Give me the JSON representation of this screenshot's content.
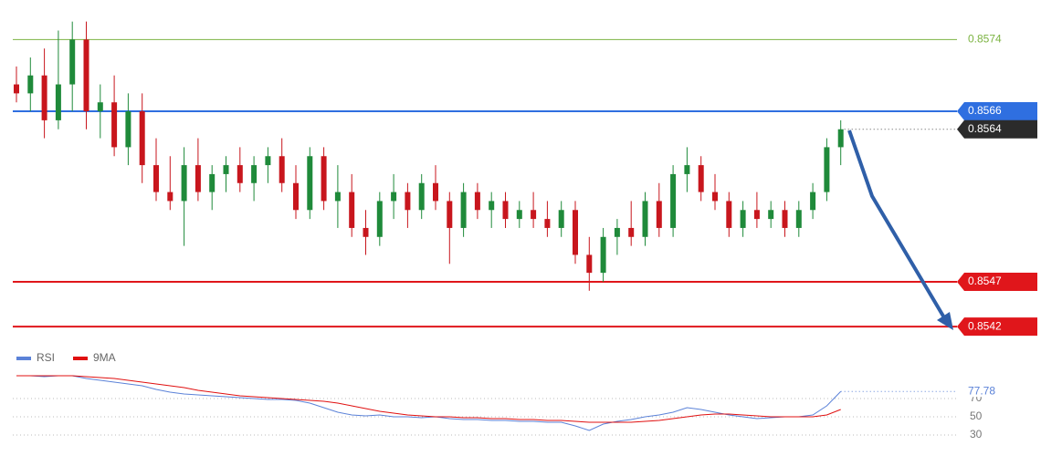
{
  "chart_data": [
    {
      "type": "candlestick",
      "open": [
        0.8569,
        0.8568,
        0.857,
        0.8565,
        0.8569,
        0.8574,
        0.8566,
        0.8567,
        0.8562,
        0.8566,
        0.856,
        0.8557,
        0.8556,
        0.856,
        0.8557,
        0.8559,
        0.856,
        0.8558,
        0.856,
        0.8561,
        0.8558,
        0.8555,
        0.8561,
        0.8556,
        0.8557,
        0.8553,
        0.8552,
        0.8556,
        0.8557,
        0.8555,
        0.8558,
        0.8556,
        0.8553,
        0.8557,
        0.8555,
        0.8556,
        0.8554,
        0.8555,
        0.8554,
        0.8553,
        0.8555,
        0.855,
        0.8548,
        0.8552,
        0.8553,
        0.8552,
        0.8556,
        0.8553,
        0.8559,
        0.856,
        0.8557,
        0.8556,
        0.8553,
        0.8555,
        0.8554,
        0.8555,
        0.8553,
        0.8555,
        0.8557,
        0.8562
      ],
      "high": [
        0.8571,
        0.8572,
        0.8573,
        0.8575,
        0.8576,
        0.8576,
        0.8569,
        0.857,
        0.8568,
        0.8568,
        0.8563,
        0.8561,
        0.8562,
        0.8563,
        0.856,
        0.8561,
        0.8562,
        0.8561,
        0.8562,
        0.8563,
        0.856,
        0.8562,
        0.8562,
        0.856,
        0.8559,
        0.8555,
        0.8557,
        0.8559,
        0.8558,
        0.8559,
        0.856,
        0.8557,
        0.8558,
        0.8558,
        0.8557,
        0.8557,
        0.8556,
        0.8557,
        0.8556,
        0.8556,
        0.8556,
        0.8552,
        0.8553,
        0.8554,
        0.8556,
        0.8557,
        0.8558,
        0.856,
        0.8562,
        0.8561,
        0.8559,
        0.8557,
        0.8556,
        0.8557,
        0.8556,
        0.8556,
        0.8556,
        0.8558,
        0.8563,
        0.8565
      ],
      "low": [
        0.8567,
        0.8566,
        0.8563,
        0.8564,
        0.8566,
        0.8564,
        0.8563,
        0.8561,
        0.856,
        0.8558,
        0.8556,
        0.8555,
        0.8551,
        0.8556,
        0.8555,
        0.8557,
        0.8557,
        0.8556,
        0.8558,
        0.8557,
        0.8554,
        0.8554,
        0.8555,
        0.8553,
        0.8552,
        0.855,
        0.8551,
        0.8554,
        0.8553,
        0.8554,
        0.8555,
        0.8549,
        0.8552,
        0.8554,
        0.8553,
        0.8553,
        0.8553,
        0.8553,
        0.8552,
        0.8552,
        0.8549,
        0.8546,
        0.8547,
        0.855,
        0.8551,
        0.8551,
        0.8552,
        0.8552,
        0.8557,
        0.8556,
        0.8555,
        0.8552,
        0.8552,
        0.8553,
        0.8553,
        0.8552,
        0.8552,
        0.8554,
        0.8556,
        0.856
      ],
      "close": [
        0.8568,
        0.857,
        0.8565,
        0.8569,
        0.8574,
        0.8566,
        0.8567,
        0.8562,
        0.8566,
        0.856,
        0.8557,
        0.8556,
        0.856,
        0.8557,
        0.8559,
        0.856,
        0.8558,
        0.856,
        0.8561,
        0.8558,
        0.8555,
        0.8561,
        0.8556,
        0.8557,
        0.8553,
        0.8552,
        0.8556,
        0.8557,
        0.8555,
        0.8558,
        0.8556,
        0.8553,
        0.8557,
        0.8555,
        0.8556,
        0.8554,
        0.8555,
        0.8554,
        0.8553,
        0.8555,
        0.855,
        0.8548,
        0.8552,
        0.8553,
        0.8552,
        0.8556,
        0.8553,
        0.8559,
        0.856,
        0.8557,
        0.8556,
        0.8553,
        0.8555,
        0.8554,
        0.8555,
        0.8553,
        0.8555,
        0.8557,
        0.8562,
        0.8564
      ],
      "up_color": "#1f8a3a",
      "down_color": "#c8161d",
      "ylim": [
        0.8541,
        0.8578
      ],
      "levels": [
        {
          "value": 0.8574,
          "color": "#7cb342",
          "boxed": false
        },
        {
          "value": 0.8566,
          "color": "#2f6fe0",
          "boxed": true
        },
        {
          "value": 0.8547,
          "color": "#e0161b",
          "boxed": true
        },
        {
          "value": 0.8542,
          "color": "#e0161b",
          "boxed": true
        }
      ],
      "last_color": "#2b2b2b"
    },
    {
      "type": "line",
      "series": [
        {
          "name": "RSI",
          "color": "#5b82d8",
          "values": [
            95,
            95,
            94,
            95,
            95,
            92,
            90,
            88,
            86,
            84,
            80,
            77,
            75,
            74,
            73,
            72,
            71,
            70,
            69,
            69,
            68,
            65,
            60,
            55,
            52,
            51,
            52,
            50,
            50,
            49,
            50,
            48,
            47,
            47,
            46,
            46,
            45,
            45,
            44,
            44,
            40,
            35,
            42,
            45,
            47,
            50,
            52,
            55,
            60,
            58,
            55,
            52,
            50,
            48,
            49,
            50,
            50,
            52,
            62,
            77.78
          ]
        },
        {
          "name": "9MA",
          "color": "#e01010",
          "values": [
            95,
            95,
            95,
            95,
            95,
            94,
            93,
            92,
            90,
            88,
            86,
            84,
            82,
            79,
            77,
            75,
            73,
            72,
            71,
            70,
            69,
            68,
            67,
            65,
            62,
            59,
            56,
            54,
            52,
            51,
            50,
            50,
            49,
            49,
            48,
            48,
            47,
            47,
            46,
            46,
            45,
            44,
            44,
            44,
            44,
            45,
            46,
            48,
            50,
            52,
            53,
            53,
            52,
            51,
            50,
            50,
            50,
            50,
            52,
            58
          ]
        }
      ],
      "ylim": [
        20,
        90
      ],
      "yticks": [
        30,
        50,
        70
      ],
      "grid": true,
      "legend": "top-left"
    }
  ]
}
